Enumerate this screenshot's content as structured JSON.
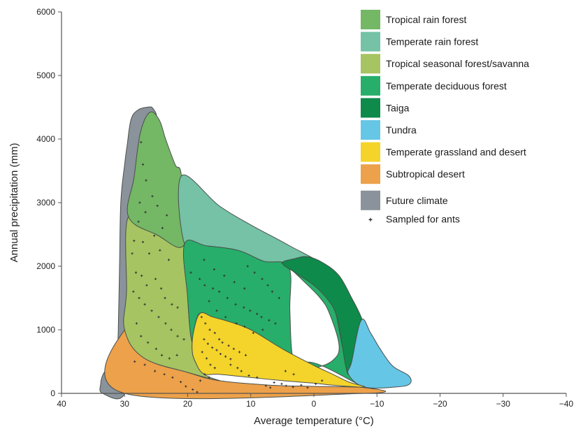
{
  "chart_data": {
    "type": "area",
    "xlabel": "Average temperature (°C)",
    "ylabel": "Annual precipitation (mm)",
    "xlim": [
      40,
      -40
    ],
    "ylim": [
      0,
      6000
    ],
    "x_ticks": [
      40,
      30,
      20,
      10,
      0,
      -10,
      -20,
      -30,
      -40
    ],
    "x_tick_labels": [
      "40",
      "30",
      "20",
      "10",
      "0",
      "−10",
      "−20",
      "−30",
      "−40"
    ],
    "y_ticks": [
      0,
      1000,
      2000,
      3000,
      4000,
      5000,
      6000
    ],
    "y_tick_labels": [
      "0",
      "1000",
      "2000",
      "3000",
      "4000",
      "5000",
      "6000"
    ],
    "legend": [
      {
        "label": "Tropical rain forest",
        "color": "#74b765"
      },
      {
        "label": "Temperate rain forest",
        "color": "#75c2a6"
      },
      {
        "label": "Tropical seasonal forest/savanna",
        "color": "#a6c462"
      },
      {
        "label": "Temperate deciduous forest",
        "color": "#27ae6a"
      },
      {
        "label": "Taiga",
        "color": "#0e8a4a"
      },
      {
        "label": "Tundra",
        "color": "#66c6e6"
      },
      {
        "label": "Temperate grassland and desert",
        "color": "#f4d42a"
      },
      {
        "label": "Subtropical desert",
        "color": "#eda14a"
      },
      {
        "label": "Future climate",
        "color": "#8a939b"
      },
      {
        "label": "Sampled for ants",
        "marker": "+"
      }
    ],
    "legend_position": "top-right",
    "series": [
      {
        "name": "Future climate",
        "color": "#8a939b",
        "polygon": [
          [
            33.5,
            0
          ],
          [
            33.8,
            150
          ],
          [
            33.3,
            320
          ],
          [
            32,
            480
          ],
          [
            31.2,
            700
          ],
          [
            31,
            1000
          ],
          [
            30.8,
            2000
          ],
          [
            30.6,
            3000
          ],
          [
            30,
            3600
          ],
          [
            29.6,
            3900
          ],
          [
            29,
            4300
          ],
          [
            28,
            4450
          ],
          [
            26.5,
            4500
          ],
          [
            25.5,
            4480
          ],
          [
            25,
            4300
          ],
          [
            27,
            4000
          ],
          [
            28,
            3300
          ],
          [
            29.2,
            1000
          ],
          [
            30,
            0
          ]
        ]
      },
      {
        "name": "Subtropical desert",
        "color": "#eda14a",
        "polygon": [
          [
            30,
            0
          ],
          [
            30,
            1000
          ],
          [
            27,
            560
          ],
          [
            20,
            330
          ],
          [
            15,
            200
          ],
          [
            7,
            130
          ],
          [
            0,
            110
          ],
          [
            -8,
            90
          ],
          [
            -8,
            0
          ]
        ]
      },
      {
        "name": "Tropical seasonal forest/savanna",
        "color": "#a6c462",
        "polygon": [
          [
            30,
            1000
          ],
          [
            29.7,
            1600
          ],
          [
            29.4,
            2780
          ],
          [
            25,
            2500
          ],
          [
            20.5,
            2350
          ],
          [
            20,
            1500
          ],
          [
            19.5,
            900
          ],
          [
            18.5,
            560
          ],
          [
            17.5,
            310
          ],
          [
            15,
            200
          ],
          [
            20,
            330
          ],
          [
            27,
            560
          ]
        ]
      },
      {
        "name": "Tropical rain forest",
        "color": "#74b765",
        "polygon": [
          [
            29.4,
            2780
          ],
          [
            28.5,
            3400
          ],
          [
            27.5,
            4100
          ],
          [
            26,
            4420
          ],
          [
            24.5,
            4300
          ],
          [
            23.5,
            4000
          ],
          [
            22,
            3600
          ],
          [
            21,
            3420
          ],
          [
            20.5,
            2350
          ],
          [
            25,
            2500
          ]
        ]
      },
      {
        "name": "Temperate rain forest",
        "color": "#75c2a6",
        "polygon": [
          [
            21,
            3420
          ],
          [
            15,
            2950
          ],
          [
            10,
            2650
          ],
          [
            4,
            2330
          ],
          [
            -1,
            2030
          ],
          [
            4,
            1990
          ],
          [
            8,
            2080
          ],
          [
            12,
            2250
          ],
          [
            17,
            2320
          ],
          [
            20.5,
            2350
          ]
        ]
      },
      {
        "name": "Temperate deciduous forest",
        "color": "#27ae6a",
        "polygon": [
          [
            20.5,
            2350
          ],
          [
            17,
            2320
          ],
          [
            12,
            2250
          ],
          [
            8,
            2080
          ],
          [
            4,
            1990
          ],
          [
            3.8,
            1300
          ],
          [
            3.4,
            600
          ],
          [
            2,
            450
          ],
          [
            0,
            400
          ],
          [
            -3,
            520
          ],
          [
            -4,
            750
          ],
          [
            -2.5,
            1250
          ],
          [
            -1,
            1500
          ],
          [
            2,
            1800
          ],
          [
            4,
            1990
          ],
          [
            4.8,
            2060
          ],
          [
            -1,
            2030
          ],
          [
            -2.5,
            1500
          ],
          [
            -3.5,
            1250
          ],
          [
            -4.5,
            750
          ],
          [
            -5.5,
            350
          ],
          [
            -8,
            100
          ],
          [
            0,
            480
          ],
          [
            4,
            400
          ],
          [
            8,
            550
          ],
          [
            11,
            700
          ],
          [
            14,
            850
          ],
          [
            16,
            1050
          ],
          [
            18,
            1260
          ],
          [
            19,
            1000
          ],
          [
            19.3,
            700
          ],
          [
            18.8,
            500
          ],
          [
            17.5,
            310
          ],
          [
            18.5,
            560
          ],
          [
            19.5,
            900
          ],
          [
            20,
            1500
          ]
        ]
      },
      {
        "name": "Taiga",
        "color": "#0e8a4a",
        "polygon": [
          [
            5,
            2050
          ],
          [
            3,
            1900
          ],
          [
            0,
            1700
          ],
          [
            -2,
            1500
          ],
          [
            -3.5,
            1250
          ],
          [
            -4.5,
            750
          ],
          [
            -5,
            450
          ],
          [
            -5.5,
            300
          ],
          [
            -6,
            500
          ],
          [
            -8,
            750
          ],
          [
            -8.5,
            880
          ],
          [
            -7.5,
            1200
          ],
          [
            -6,
            1500
          ],
          [
            -4,
            1850
          ],
          [
            -1.5,
            2050
          ],
          [
            1,
            2150
          ],
          [
            3,
            2120
          ]
        ]
      },
      {
        "name": "Tundra",
        "color": "#66c6e6",
        "polygon": [
          [
            -6,
            500
          ],
          [
            -7.5,
            1150
          ],
          [
            -9,
            950
          ],
          [
            -10.5,
            700
          ],
          [
            -12.5,
            430
          ],
          [
            -15,
            280
          ],
          [
            -15.2,
            150
          ],
          [
            -13,
            100
          ],
          [
            -8,
            100
          ],
          [
            -5.5,
            300
          ]
        ]
      },
      {
        "name": "Temperate grassland and desert",
        "color": "#f4d42a",
        "polygon": [
          [
            18,
            1260
          ],
          [
            16,
            1200
          ],
          [
            13.5,
            1130
          ],
          [
            10,
            1000
          ],
          [
            5,
            700
          ],
          [
            0,
            440
          ],
          [
            -3,
            300
          ],
          [
            -5.5,
            180
          ],
          [
            -8,
            100
          ],
          [
            -3,
            130
          ],
          [
            0,
            160
          ],
          [
            5,
            200
          ],
          [
            10,
            250
          ],
          [
            15,
            300
          ],
          [
            17.5,
            310
          ],
          [
            18.8,
            500
          ],
          [
            19.3,
            700
          ],
          [
            19,
            1000
          ]
        ]
      }
    ],
    "sampled_points": [
      [
        27.4,
        3950
      ],
      [
        27.1,
        3600
      ],
      [
        26.6,
        3350
      ],
      [
        27.6,
        3000
      ],
      [
        26.7,
        2850
      ],
      [
        25.6,
        3100
      ],
      [
        24.8,
        2950
      ],
      [
        24.0,
        2600
      ],
      [
        23.3,
        2800
      ],
      [
        25.3,
        2480
      ],
      [
        27.8,
        2700
      ],
      [
        28.5,
        2400
      ],
      [
        28.8,
        2200
      ],
      [
        27.1,
        2380
      ],
      [
        26.1,
        2200
      ],
      [
        24.4,
        2250
      ],
      [
        23.0,
        2100
      ],
      [
        28.2,
        1900
      ],
      [
        27.3,
        1850
      ],
      [
        26.5,
        1700
      ],
      [
        25.1,
        1800
      ],
      [
        24.2,
        1650
      ],
      [
        23.6,
        1500
      ],
      [
        22.5,
        1400
      ],
      [
        21.6,
        1350
      ],
      [
        28.6,
        1600
      ],
      [
        27.7,
        1500
      ],
      [
        26.8,
        1400
      ],
      [
        25.7,
        1300
      ],
      [
        24.6,
        1200
      ],
      [
        23.5,
        1100
      ],
      [
        22.6,
        1000
      ],
      [
        21.6,
        900
      ],
      [
        20.6,
        850
      ],
      [
        28.1,
        1100
      ],
      [
        27.4,
        900
      ],
      [
        26.3,
        800
      ],
      [
        25.0,
        700
      ],
      [
        24.1,
        600
      ],
      [
        22.9,
        550
      ],
      [
        21.7,
        600
      ],
      [
        28.4,
        500
      ],
      [
        26.8,
        450
      ],
      [
        25.2,
        350
      ],
      [
        23.7,
        300
      ],
      [
        22.4,
        250
      ],
      [
        21.1,
        180
      ],
      [
        20.3,
        110
      ],
      [
        19.2,
        60
      ],
      [
        18.5,
        20
      ],
      [
        19.5,
        1900
      ],
      [
        18.1,
        1800
      ],
      [
        17.3,
        1700
      ],
      [
        16.0,
        1650
      ],
      [
        15.0,
        1600
      ],
      [
        13.7,
        1500
      ],
      [
        12.4,
        1400
      ],
      [
        11.1,
        1350
      ],
      [
        10.1,
        1300
      ],
      [
        9.0,
        1250
      ],
      [
        8.3,
        1200
      ],
      [
        7.1,
        1150
      ],
      [
        6.1,
        1100
      ],
      [
        10.5,
        2000
      ],
      [
        9.4,
        1900
      ],
      [
        8.2,
        1800
      ],
      [
        7.3,
        1700
      ],
      [
        6.6,
        1600
      ],
      [
        5.5,
        1500
      ],
      [
        17.4,
        2100
      ],
      [
        15.8,
        1950
      ],
      [
        14.2,
        1850
      ],
      [
        12.6,
        1750
      ],
      [
        11.0,
        1650
      ],
      [
        16.6,
        1450
      ],
      [
        15.4,
        1300
      ],
      [
        14.0,
        1200
      ],
      [
        12.3,
        1100
      ],
      [
        11.0,
        1050
      ],
      [
        9.6,
        950
      ],
      [
        8.1,
        1000
      ],
      [
        17.8,
        1200
      ],
      [
        17.2,
        1100
      ],
      [
        16.5,
        1000
      ],
      [
        15.7,
        950
      ],
      [
        15.0,
        850
      ],
      [
        14.5,
        800
      ],
      [
        13.5,
        750
      ],
      [
        12.7,
        700
      ],
      [
        11.8,
        650
      ],
      [
        10.8,
        600
      ],
      [
        17.4,
        850
      ],
      [
        16.8,
        780
      ],
      [
        16.1,
        720
      ],
      [
        15.4,
        680
      ],
      [
        14.8,
        620
      ],
      [
        14.0,
        580
      ],
      [
        13.2,
        540
      ],
      [
        17.7,
        650
      ],
      [
        17.0,
        550
      ],
      [
        16.4,
        450
      ],
      [
        15.7,
        400
      ],
      [
        17.3,
        300
      ],
      [
        16.6,
        250
      ],
      [
        18.0,
        200
      ],
      [
        13.2,
        450
      ],
      [
        12.1,
        400
      ],
      [
        11.5,
        350
      ],
      [
        10.3,
        280
      ],
      [
        9.0,
        250
      ],
      [
        6.3,
        170
      ],
      [
        5.1,
        150
      ],
      [
        4.4,
        120
      ],
      [
        3.3,
        100
      ],
      [
        2.0,
        130
      ],
      [
        1.0,
        90
      ],
      [
        7.6,
        120
      ],
      [
        6.9,
        90
      ],
      [
        -0.3,
        150
      ],
      [
        -1.3,
        200
      ],
      [
        4.5,
        350
      ],
      [
        3.2,
        300
      ]
    ]
  }
}
